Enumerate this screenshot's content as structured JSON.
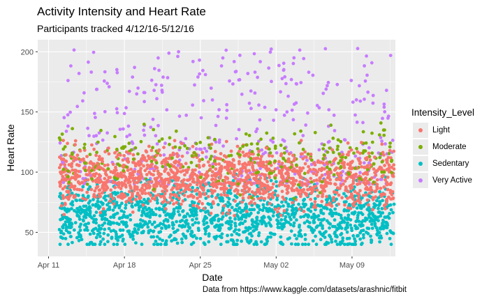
{
  "chart_data": {
    "type": "scatter",
    "title": "Activity Intensity and Heart Rate",
    "subtitle": "Participants tracked 4/12/16-5/12/16",
    "xlabel": "Date",
    "ylabel": "Heart Rate",
    "caption": "Data from https://www.kaggle.com/datasets/arashnic/fitbit",
    "x_range": [
      "2016-04-10",
      "2016-05-13"
    ],
    "y_range": [
      30,
      210
    ],
    "x_ticks": [
      {
        "date": "2016-04-11",
        "label": "Apr 11"
      },
      {
        "date": "2016-04-18",
        "label": "Apr 18"
      },
      {
        "date": "2016-04-25",
        "label": "Apr 25"
      },
      {
        "date": "2016-05-02",
        "label": "May 02"
      },
      {
        "date": "2016-05-09",
        "label": "May 09"
      }
    ],
    "y_ticks": [
      50,
      100,
      150,
      200
    ],
    "grid": true,
    "legend_title": "Intensity_Level",
    "legend_position": "right",
    "data_start": "2016-04-12",
    "data_end": "2016-05-12",
    "series": [
      {
        "name": "Light",
        "color": "#F8766D",
        "hr_min": 55,
        "hr_max": 135,
        "hr_center": 95
      },
      {
        "name": "Moderate",
        "color": "#7CAE00",
        "hr_min": 70,
        "hr_max": 150,
        "hr_center": 112
      },
      {
        "name": "Sedentary",
        "color": "#00BFC4",
        "hr_min": 40,
        "hr_max": 130,
        "hr_center": 63
      },
      {
        "name": "Very Active",
        "color": "#C77CFF",
        "hr_min": 90,
        "hr_max": 203,
        "hr_center": 128
      }
    ]
  }
}
